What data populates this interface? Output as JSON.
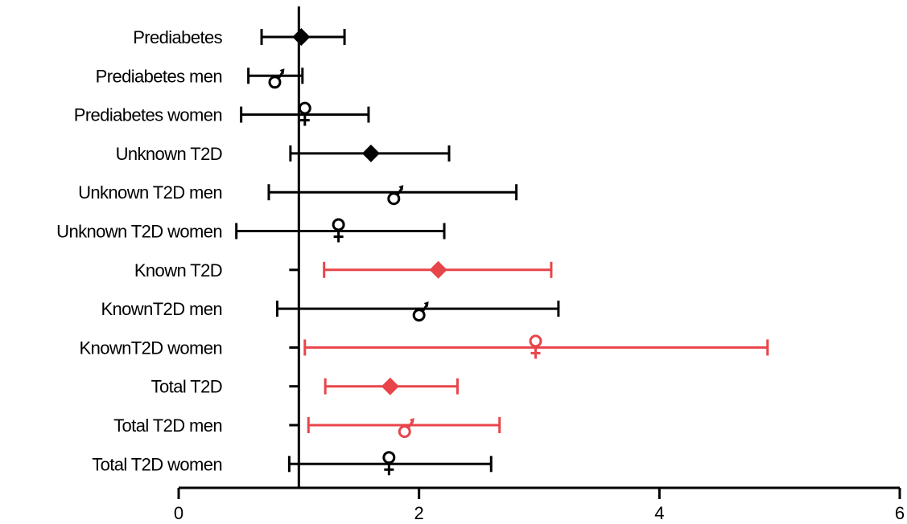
{
  "chart_data": {
    "type": "forest",
    "xlim": [
      0,
      6
    ],
    "xticks": [
      0,
      2,
      4,
      6
    ],
    "reference_line": 1,
    "grid": false,
    "colors": {
      "black": "#000000",
      "red": "#e8454a"
    },
    "rows": [
      {
        "label": "Prediabetes",
        "est": 1.02,
        "low": 0.69,
        "high": 1.38,
        "marker": "diamond",
        "color": "black",
        "lower_clipped": false
      },
      {
        "label": "Prediabetes men",
        "est": 0.8,
        "low": 0.58,
        "high": 1.03,
        "marker": "male",
        "color": "black",
        "lower_clipped": false
      },
      {
        "label": "Prediabetes women",
        "est": 1.05,
        "low": 0.52,
        "high": 1.58,
        "marker": "female",
        "color": "black",
        "lower_clipped": false
      },
      {
        "label": "Unknown T2D",
        "est": 1.6,
        "low": 0.93,
        "high": 2.25,
        "marker": "diamond",
        "color": "black",
        "lower_clipped": false
      },
      {
        "label": "Unknown T2D men",
        "est": 1.79,
        "low": 0.75,
        "high": 2.81,
        "marker": "male",
        "color": "black",
        "lower_clipped": false
      },
      {
        "label": "Unknown T2D women",
        "est": 1.33,
        "low": 0.48,
        "high": 2.21,
        "marker": "female",
        "color": "black",
        "lower_clipped": false
      },
      {
        "label": "Known T2D",
        "est": 2.16,
        "low": 1.21,
        "high": 3.1,
        "marker": "diamond",
        "color": "red",
        "lower_clipped": true
      },
      {
        "label": "KnownT2D men",
        "est": 2.0,
        "low": 0.82,
        "high": 3.16,
        "marker": "male",
        "color": "black",
        "lower_clipped": false
      },
      {
        "label": "KnownT2D women",
        "est": 2.97,
        "low": 1.05,
        "high": 4.9,
        "marker": "female",
        "color": "red",
        "lower_clipped": true
      },
      {
        "label": "Total T2D",
        "est": 1.76,
        "low": 1.22,
        "high": 2.32,
        "marker": "diamond",
        "color": "red",
        "lower_clipped": true
      },
      {
        "label": "Total T2D men",
        "est": 1.88,
        "low": 1.08,
        "high": 2.67,
        "marker": "male",
        "color": "red",
        "lower_clipped": true
      },
      {
        "label": "Total T2D women",
        "est": 1.75,
        "low": 0.92,
        "high": 2.6,
        "marker": "female",
        "color": "black",
        "lower_clipped": false
      }
    ]
  }
}
